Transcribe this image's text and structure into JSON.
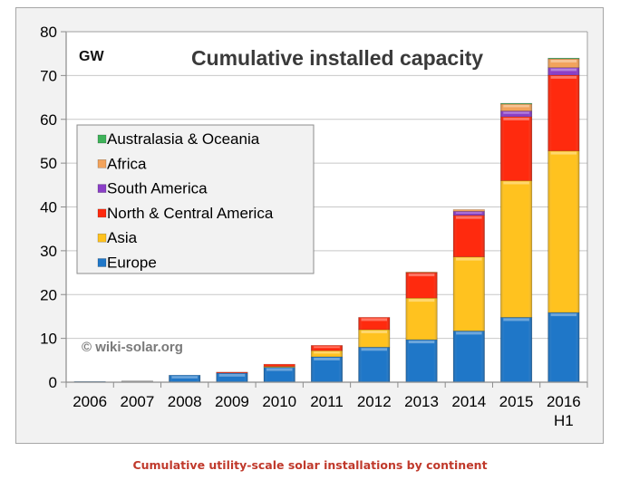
{
  "caption": "Cumulative utility-scale solar installations by continent",
  "chart_data": {
    "type": "bar",
    "stacked": true,
    "title": "Cumulative installed capacity",
    "unit_label": "GW",
    "watermark": "© wiki-solar.org",
    "xlabel": "",
    "ylabel": "GW",
    "ylim": [
      0,
      80
    ],
    "yticks": [
      0,
      10,
      20,
      30,
      40,
      50,
      60,
      70,
      80
    ],
    "grid": true,
    "legend_position": "upper-left",
    "categories": [
      "2006",
      "2007",
      "2008",
      "2009",
      "2010",
      "2011",
      "2012",
      "2013",
      "2014",
      "2015",
      "2016 H1"
    ],
    "category_lines": [
      [
        "2006"
      ],
      [
        "2007"
      ],
      [
        "2008"
      ],
      [
        "2009"
      ],
      [
        "2010"
      ],
      [
        "2011"
      ],
      [
        "2012"
      ],
      [
        "2013"
      ],
      [
        "2014"
      ],
      [
        "2015"
      ],
      [
        "2016",
        "H1"
      ]
    ],
    "series": [
      {
        "name": "Europe",
        "color": "#1f77c8",
        "values": [
          0.1,
          0.3,
          1.6,
          2.1,
          3.4,
          5.8,
          8.0,
          9.7,
          11.7,
          14.8,
          15.9
        ]
      },
      {
        "name": "Asia",
        "color": "#ffc21f",
        "values": [
          0,
          0,
          0,
          0,
          0.2,
          1.4,
          4.0,
          9.5,
          16.9,
          31.2,
          36.9
        ]
      },
      {
        "name": "North & Central America",
        "color": "#ff2a0e",
        "values": [
          0,
          0,
          0,
          0.2,
          0.5,
          1.2,
          2.8,
          5.8,
          9.5,
          14.6,
          17.3
        ]
      },
      {
        "name": "South America",
        "color": "#8b3fc7",
        "values": [
          0,
          0,
          0,
          0,
          0,
          0,
          0,
          0,
          0.9,
          1.3,
          1.7
        ]
      },
      {
        "name": "Africa",
        "color": "#f2a35c",
        "values": [
          0,
          0,
          0,
          0,
          0,
          0,
          0,
          0.1,
          0.4,
          1.6,
          2.0
        ]
      },
      {
        "name": "Australasia & Oceania",
        "color": "#3fb25a",
        "values": [
          0,
          0,
          0,
          0,
          0,
          0,
          0,
          0,
          0,
          0.1,
          0.1
        ]
      }
    ],
    "legend_order": [
      "Australasia & Oceania",
      "Africa",
      "South America",
      "North & Central America",
      "Asia",
      "Europe"
    ]
  }
}
